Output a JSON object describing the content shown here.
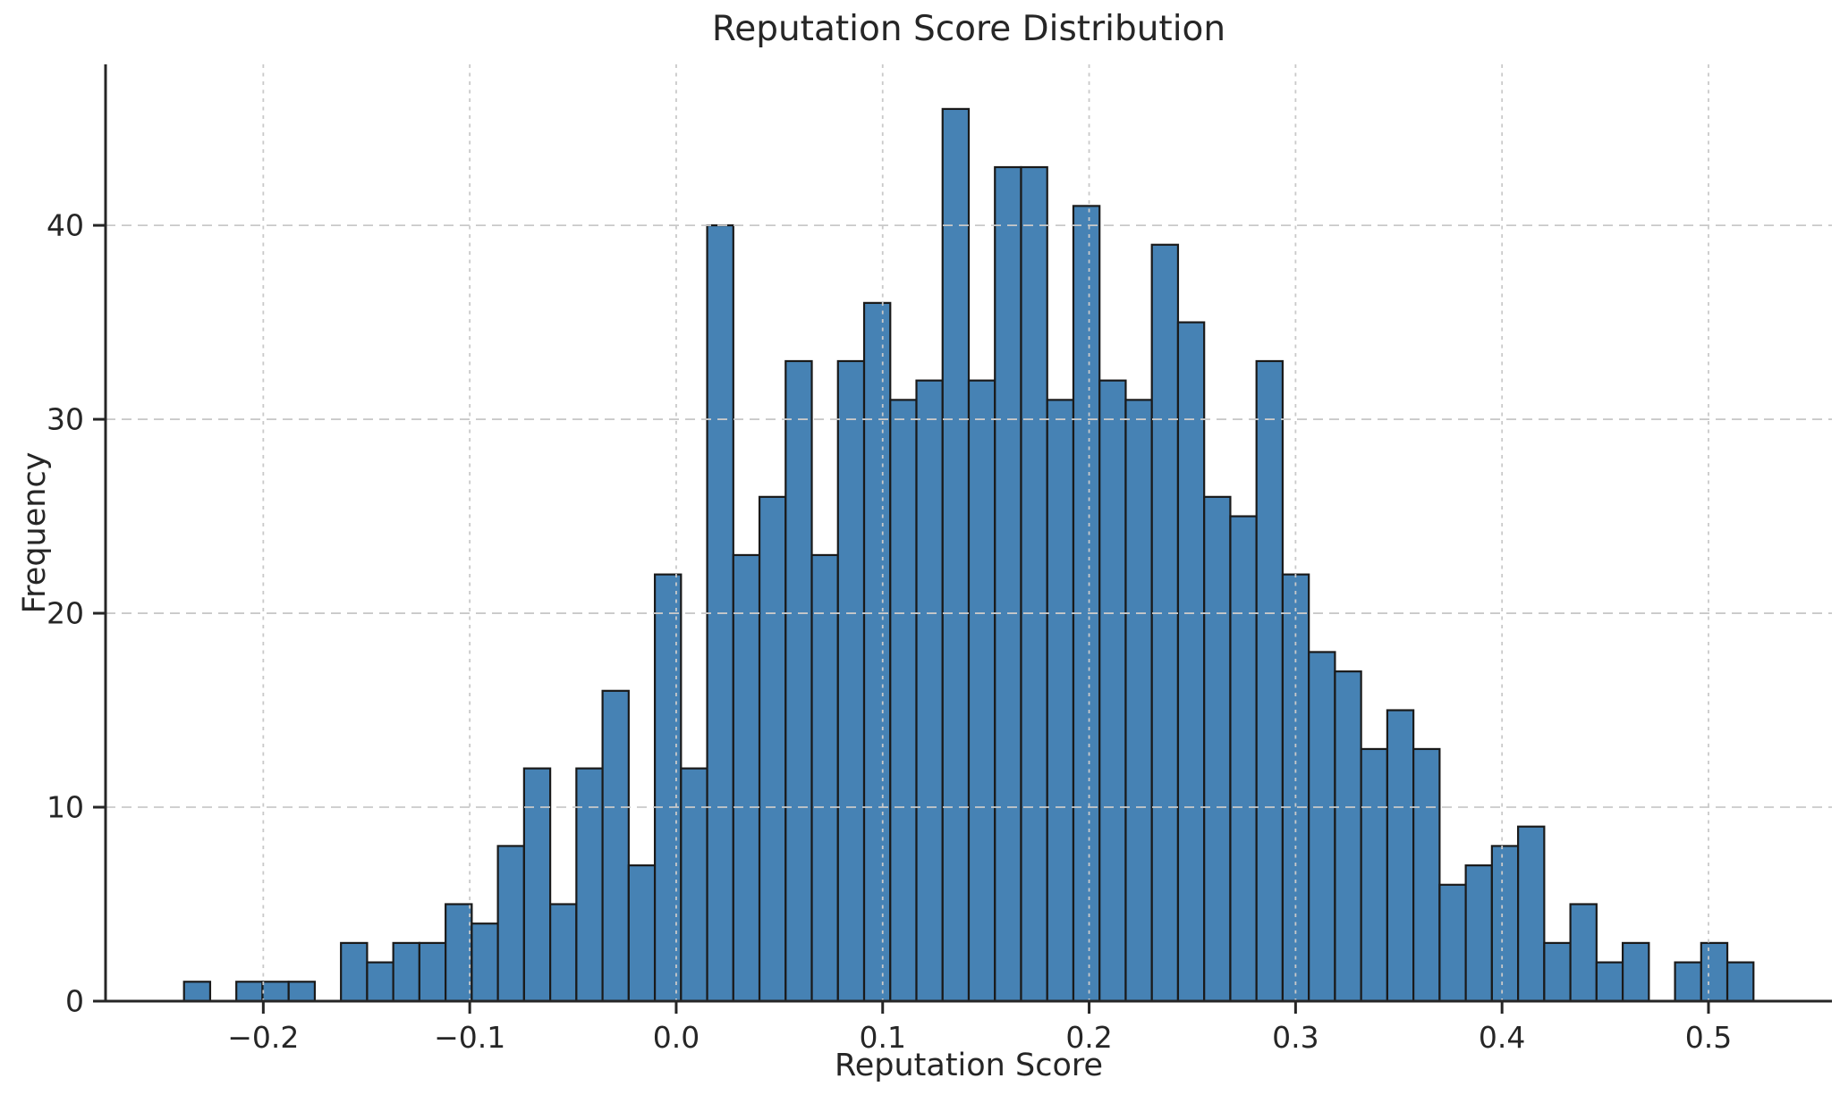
{
  "chart_data": {
    "type": "histogram",
    "title": "Reputation Score Distribution",
    "xlabel": "Reputation Score",
    "ylabel": "Frequency",
    "bin_start": -0.2384,
    "bin_width": 0.01267,
    "counts": [
      1,
      0,
      1,
      1,
      1,
      0,
      3,
      2,
      3,
      3,
      5,
      4,
      8,
      12,
      5,
      12,
      16,
      7,
      22,
      12,
      40,
      23,
      26,
      33,
      23,
      33,
      36,
      31,
      32,
      46,
      32,
      43,
      43,
      31,
      41,
      32,
      31,
      39,
      35,
      26,
      25,
      33,
      22,
      18,
      17,
      13,
      15,
      13,
      6,
      7,
      8,
      9,
      3,
      5,
      2,
      3,
      0,
      2,
      3,
      2
    ],
    "total_samples": 1000,
    "xlim": [
      -0.2764,
      0.5598
    ],
    "ylim": [
      0,
      48.3
    ],
    "xticks": {
      "values": [
        -0.2,
        -0.1,
        0.0,
        0.1,
        0.2,
        0.3,
        0.4,
        0.5
      ],
      "labels": [
        "−0.2",
        "−0.1",
        "0.0",
        "0.1",
        "0.2",
        "0.3",
        "0.4",
        "0.5"
      ]
    },
    "yticks": {
      "values": [
        0,
        10,
        20,
        30,
        40
      ],
      "labels": [
        "0",
        "10",
        "20",
        "30",
        "40"
      ]
    },
    "grid": true,
    "grid_on_top": true,
    "bar_color": "#4682B4",
    "bar_edge_color": "#1a1a1a",
    "grid_color": "#c9c9c9",
    "spine_color": "#262626",
    "text_color": "#262626"
  }
}
